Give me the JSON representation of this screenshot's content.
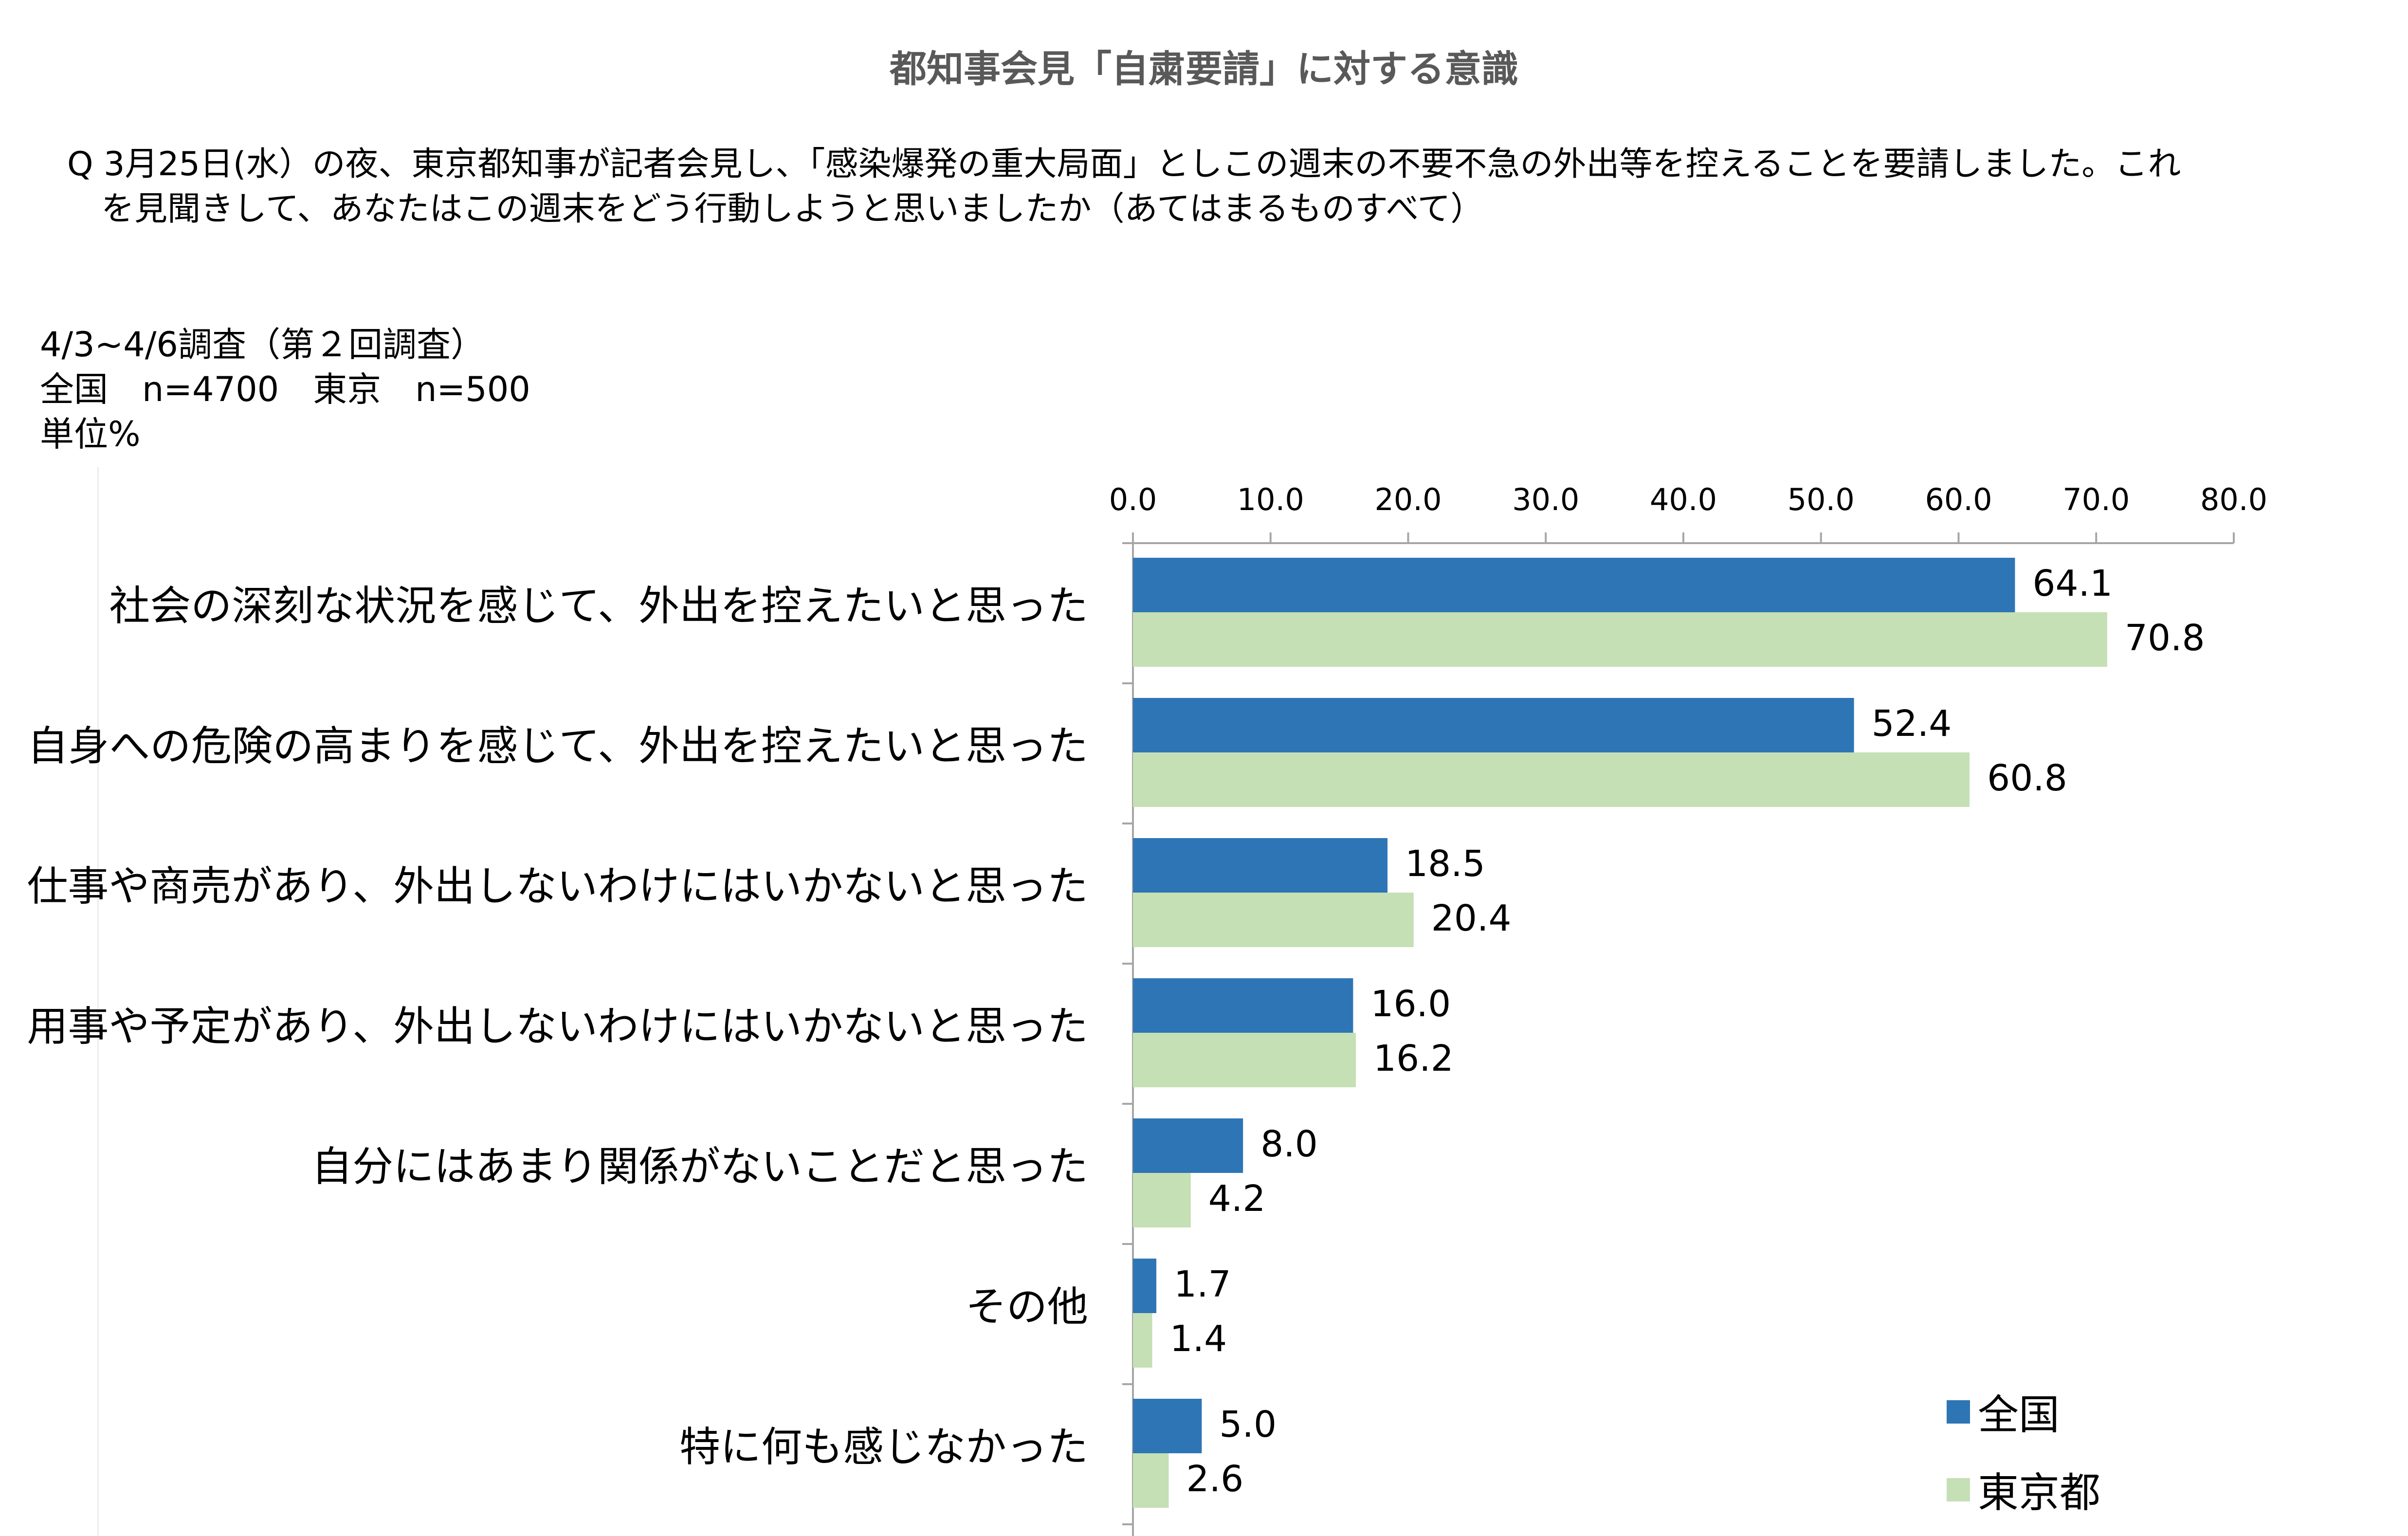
{
  "title": "都知事会見「自粛要請」に対する意識",
  "question": {
    "line1": "Q 3月25日(水）の夜、東京都知事が記者会見し、「感染爆発の重大局面」としこの週末の不要不急の外出等を控えることを要請しました。これ",
    "line2": "を見聞きして、あなたはこの週末をどう行動しようと思いましたか（あてはまるものすべて）"
  },
  "meta": {
    "survey": "4/3~4/6調査（第２回調査）",
    "sample": "全国　n=4700　東京　n=500",
    "unit": "単位%"
  },
  "colors": {
    "national": "#2E75B6",
    "tokyo": "#C5E0B4",
    "axis": "#A6A6A6"
  },
  "chart_data": {
    "type": "bar",
    "orientation": "horizontal",
    "xlim": [
      0,
      80
    ],
    "xticks": [
      "0.0",
      "10.0",
      "20.0",
      "30.0",
      "40.0",
      "50.0",
      "60.0",
      "70.0",
      "80.0"
    ],
    "categories": [
      "社会の深刻な状況を感じて、外出を控えたいと思った",
      "自身への危険の高まりを感じて、外出を控えたいと思った",
      "仕事や商売があり、外出しないわけにはいかないと思った",
      "用事や予定があり、外出しないわけにはいかないと思った",
      "自分にはあまり関係がないことだと思った",
      "その他",
      "特に何も感じなかった"
    ],
    "series": [
      {
        "name": "全国",
        "values": [
          64.1,
          52.4,
          18.5,
          16.0,
          8.0,
          1.7,
          5.0
        ],
        "labels": [
          "64.1",
          "52.4",
          "18.5",
          "16.0",
          "8.0",
          "1.7",
          "5.0"
        ]
      },
      {
        "name": "東京都",
        "values": [
          70.8,
          60.8,
          20.4,
          16.2,
          4.2,
          1.4,
          2.6
        ],
        "labels": [
          "70.8",
          "60.8",
          "20.4",
          "16.2",
          "4.2",
          "1.4",
          "2.6"
        ]
      }
    ],
    "legend": [
      "全国",
      "東京都"
    ]
  }
}
